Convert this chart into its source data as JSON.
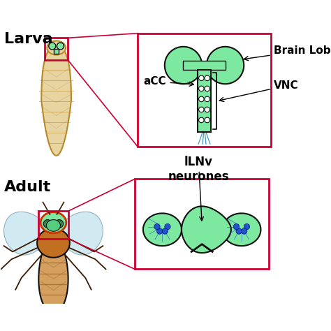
{
  "larva_label": "Larva",
  "adult_label": "Adult",
  "brain_lob_label": "Brain Lob",
  "acc_label": "aCC",
  "vnc_label": "VNC",
  "ilnv_label": "lLNv\nneurones",
  "bg_color": "#ffffff",
  "green_light": "#7de8a0",
  "green_mid": "#55cc80",
  "outline_color": "#111111",
  "red_box": "#cc0033",
  "blue_neuron": "#2255cc",
  "blue_line": "#4499bb",
  "larva_body_color": "#e8d4a0",
  "larva_outline": "#b8892a",
  "fly_body_color": "#c07020",
  "fly_thorax_color": "#a05010",
  "fly_wing_color": "#cce8f0",
  "fly_abdomen_color": "#d4a060",
  "label_fontsize": 14,
  "annot_fontsize": 10
}
